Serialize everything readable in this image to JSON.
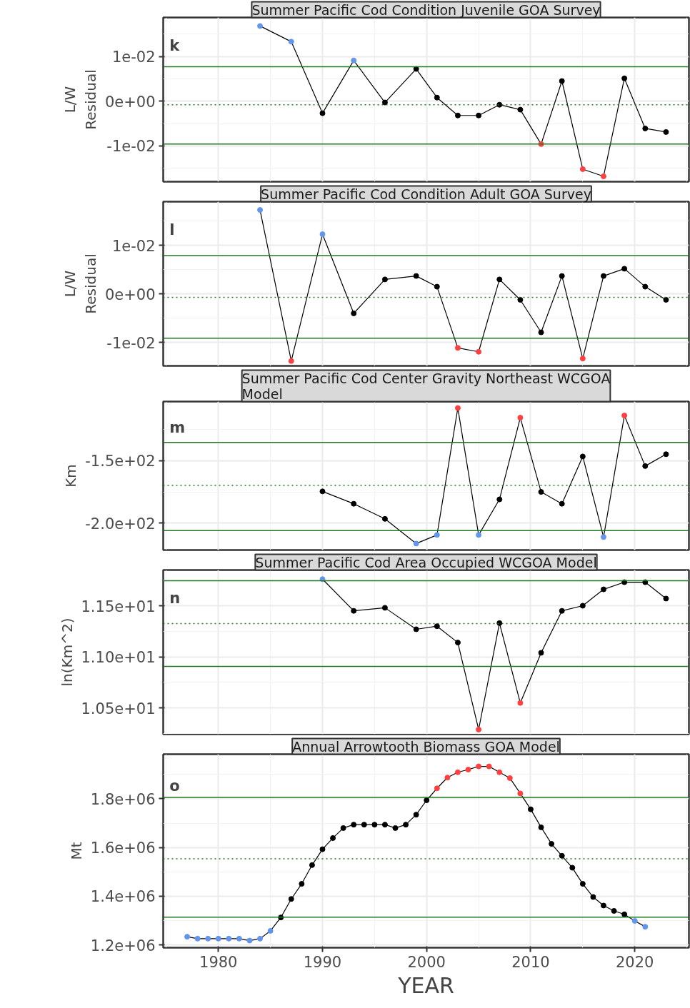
{
  "chart_data": [
    {
      "type": "line",
      "title": "Summer Pacific Cod Condition Juvenile GOA Survey",
      "ylabel": "L/W Residual",
      "annotations": [
        "k"
      ],
      "marker": "circle",
      "grid": true,
      "tick_labels": "y",
      "x": [
        1984,
        1987,
        1990,
        1993,
        1996,
        1999,
        2001,
        2003,
        2005,
        2007,
        2009,
        2011,
        2013,
        2015,
        2017,
        2019,
        2021,
        2023
      ],
      "series": [
        {
          "color": "#000000",
          "colors": [
            "#6495ed",
            "#6495ed",
            "#000000",
            "#6495ed",
            "#000000",
            "#000000",
            "#000000",
            "#000000",
            "#000000",
            "#000000",
            "#000000",
            "#ff4040",
            "#000000",
            "#ff4040",
            "#ff4040",
            "#000000",
            "#000000",
            "#000000"
          ],
          "values": [
            0.0168,
            0.0133,
            -0.0027,
            0.0091,
            -0.0003,
            0.0072,
            0.0008,
            -0.0032,
            -0.0032,
            -0.0008,
            -0.0019,
            -0.0096,
            0.0045,
            -0.0152,
            -0.0168,
            0.0051,
            -0.0061,
            -0.0069
          ]
        }
      ],
      "xlim": [
        1974.7,
        2025.2
      ],
      "xticks": [
        1980,
        1990,
        2000,
        2010,
        2020
      ],
      "ylim": [
        -0.018,
        0.0187
      ],
      "yticks": [
        {
          "value": -0.01,
          "label": "-1e-02"
        },
        {
          "value": 0,
          "label": "0e+00"
        },
        {
          "value": 0.01,
          "label": "1e-02"
        }
      ],
      "ref_lines": [
        {
          "axis": "y",
          "value": 0.0077,
          "color": "#1f7a1f",
          "line_style": "solid"
        },
        {
          "axis": "y",
          "value": -0.0008,
          "color": "#1f7a1f",
          "line_style": "dotted"
        },
        {
          "axis": "y",
          "value": -0.0096,
          "color": "#1f7a1f",
          "line_style": "solid"
        }
      ]
    },
    {
      "type": "line",
      "title": "Summer Pacific Cod Condition Adult GOA Survey",
      "ylabel": "L/W Residual",
      "annotations": [
        "l"
      ],
      "marker": "circle",
      "grid": true,
      "tick_labels": "y",
      "x": [
        1984,
        1987,
        1990,
        1993,
        1996,
        1999,
        2001,
        2003,
        2005,
        2007,
        2009,
        2011,
        2013,
        2015,
        2017,
        2019,
        2021,
        2023
      ],
      "series": [
        {
          "color": "#000000",
          "colors": [
            "#6495ed",
            "#ff4040",
            "#6495ed",
            "#000000",
            "#000000",
            "#000000",
            "#000000",
            "#ff4040",
            "#ff4040",
            "#000000",
            "#000000",
            "#000000",
            "#000000",
            "#ff4040",
            "#000000",
            "#000000",
            "#000000",
            "#000000"
          ],
          "values": [
            0.0173,
            -0.0138,
            0.0123,
            -0.004,
            0.003,
            0.0037,
            0.0015,
            -0.0111,
            -0.0119,
            0.003,
            -0.0012,
            -0.0079,
            0.0037,
            -0.0133,
            0.0037,
            0.0052,
            0.0015,
            -0.0012
          ]
        }
      ],
      "xlim": [
        1974.7,
        2025.2
      ],
      "xticks": [
        1980,
        1990,
        2000,
        2010,
        2020
      ],
      "ylim": [
        -0.0148,
        0.019
      ],
      "yticks": [
        {
          "value": -0.01,
          "label": "-1e-02"
        },
        {
          "value": 0,
          "label": "0e+00"
        },
        {
          "value": 0.01,
          "label": "1e-02"
        }
      ],
      "ref_lines": [
        {
          "axis": "y",
          "value": 0.0079,
          "color": "#1f7a1f",
          "line_style": "solid"
        },
        {
          "axis": "y",
          "value": -0.0007,
          "color": "#1f7a1f",
          "line_style": "dotted"
        },
        {
          "axis": "y",
          "value": -0.0091,
          "color": "#1f7a1f",
          "line_style": "solid"
        }
      ]
    },
    {
      "type": "line",
      "title": "Summer Pacific Cod Center Gravity Northeast WCGOA Model",
      "ylabel": "Km",
      "annotations": [
        "m"
      ],
      "marker": "circle",
      "grid": true,
      "tick_labels": "y",
      "x": [
        1990,
        1993,
        1996,
        1999,
        2001,
        2003,
        2005,
        2007,
        2009,
        2011,
        2013,
        2015,
        2017,
        2019,
        2021,
        2023
      ],
      "series": [
        {
          "color": "#000000",
          "colors": [
            "#000000",
            "#000000",
            "#000000",
            "#6495ed",
            "#6495ed",
            "#ff4040",
            "#6495ed",
            "#000000",
            "#ff4040",
            "#000000",
            "#000000",
            "#000000",
            "#6495ed",
            "#ff4040",
            "#000000",
            "#000000"
          ],
          "values": [
            -174.6,
            -184.5,
            -196.6,
            -216.4,
            -209.5,
            -107.8,
            -209.5,
            -181.0,
            -115.5,
            -175.0,
            -184.5,
            -146.6,
            -211.2,
            -113.8,
            -154.3,
            -144.8
          ]
        }
      ],
      "xlim": [
        1974.7,
        2025.2
      ],
      "xticks": [
        1980,
        1990,
        2000,
        2010,
        2020
      ],
      "ylim": [
        -221.6,
        -102.6
      ],
      "yticks": [
        {
          "value": -200,
          "label": "-2.0e+02"
        },
        {
          "value": -150,
          "label": "-1.5e+02"
        }
      ],
      "ref_lines": [
        {
          "axis": "y",
          "value": -135.3,
          "color": "#1f7a1f",
          "line_style": "solid"
        },
        {
          "axis": "y",
          "value": -169.8,
          "color": "#1f7a1f",
          "line_style": "dotted"
        },
        {
          "axis": "y",
          "value": -206,
          "color": "#1f7a1f",
          "line_style": "solid"
        }
      ]
    },
    {
      "type": "line",
      "title": "Summer Pacific Cod Area Occupied WCGOA Model",
      "ylabel": "ln(Km^2)",
      "annotations": [
        "n"
      ],
      "marker": "circle",
      "grid": true,
      "tick_labels": "y",
      "x": [
        1990,
        1993,
        1996,
        1999,
        2001,
        2003,
        2005,
        2007,
        2009,
        2011,
        2013,
        2015,
        2017,
        2019,
        2021,
        2023
      ],
      "series": [
        {
          "color": "#000000",
          "colors": [
            "#6495ed",
            "#000000",
            "#000000",
            "#000000",
            "#000000",
            "#000000",
            "#ff4040",
            "#000000",
            "#ff4040",
            "#000000",
            "#000000",
            "#000000",
            "#000000",
            "#000000",
            "#000000",
            "#000000"
          ],
          "values": [
            11.76,
            11.45,
            11.48,
            11.27,
            11.3,
            11.14,
            10.29,
            11.33,
            10.55,
            11.04,
            11.45,
            11.5,
            11.66,
            11.73,
            11.73,
            11.57
          ]
        }
      ],
      "xlim": [
        1974.7,
        2025.2
      ],
      "xticks": [
        1980,
        1990,
        2000,
        2010,
        2020
      ],
      "ylim": [
        10.244,
        11.849
      ],
      "yticks": [
        {
          "value": 10.5,
          "label": "1.05e+01"
        },
        {
          "value": 11,
          "label": "1.10e+01"
        },
        {
          "value": 11.5,
          "label": "1.15e+01"
        }
      ],
      "ref_lines": [
        {
          "axis": "y",
          "value": 11.744,
          "color": "#1f7a1f",
          "line_style": "solid"
        },
        {
          "axis": "y",
          "value": 11.326,
          "color": "#1f7a1f",
          "line_style": "dotted"
        },
        {
          "axis": "y",
          "value": 10.907,
          "color": "#1f7a1f",
          "line_style": "solid"
        }
      ]
    },
    {
      "type": "line",
      "title": "Annual Arrowtooth Biomass GOA Model",
      "ylabel": "Mt",
      "xlabel": "YEAR",
      "annotations": [
        "o"
      ],
      "marker": "circle",
      "grid": true,
      "x": [
        1977,
        1978,
        1979,
        1980,
        1981,
        1982,
        1983,
        1984,
        1985,
        1986,
        1987,
        1988,
        1989,
        1990,
        1991,
        1992,
        1993,
        1994,
        1995,
        1996,
        1997,
        1998,
        1999,
        2000,
        2001,
        2002,
        2003,
        2004,
        2005,
        2006,
        2007,
        2008,
        2009,
        2010,
        2011,
        2012,
        2013,
        2014,
        2015,
        2016,
        2017,
        2018,
        2019,
        2020,
        2021
      ],
      "series": [
        {
          "color": "#000000",
          "colors": [
            "#6495ed",
            "#6495ed",
            "#6495ed",
            "#6495ed",
            "#6495ed",
            "#6495ed",
            "#6495ed",
            "#6495ed",
            "#6495ed",
            "#000000",
            "#000000",
            "#000000",
            "#000000",
            "#000000",
            "#000000",
            "#000000",
            "#000000",
            "#000000",
            "#000000",
            "#000000",
            "#000000",
            "#000000",
            "#000000",
            "#000000",
            "#ff4040",
            "#ff4040",
            "#ff4040",
            "#ff4040",
            "#ff4040",
            "#ff4040",
            "#ff4040",
            "#ff4040",
            "#ff4040",
            "#000000",
            "#000000",
            "#000000",
            "#000000",
            "#000000",
            "#000000",
            "#000000",
            "#000000",
            "#000000",
            "#000000",
            "#6495ed",
            "#6495ed"
          ],
          "values": [
            1234000,
            1226000,
            1226000,
            1226000,
            1226000,
            1226000,
            1218000,
            1226000,
            1258000,
            1313000,
            1389000,
            1451000,
            1528000,
            1593000,
            1639000,
            1680000,
            1694000,
            1694000,
            1694000,
            1694000,
            1680000,
            1694000,
            1735000,
            1794000,
            1843000,
            1887000,
            1909000,
            1920000,
            1933000,
            1933000,
            1909000,
            1885000,
            1822000,
            1757000,
            1683000,
            1615000,
            1566000,
            1517000,
            1451000,
            1397000,
            1362000,
            1340000,
            1326000,
            1299000,
            1275000
          ]
        }
      ],
      "xlim": [
        1974.7,
        2025.2
      ],
      "xticks": [
        1980,
        1990,
        2000,
        2010,
        2020
      ],
      "ylim": [
        1189000,
        1983000
      ],
      "yticks": [
        {
          "value": 1200000,
          "label": "1.2e+06"
        },
        {
          "value": 1400000,
          "label": "1.4e+06"
        },
        {
          "value": 1600000,
          "label": "1.6e+06"
        },
        {
          "value": 1800000,
          "label": "1.8e+06"
        }
      ],
      "ref_lines": [
        {
          "axis": "y",
          "value": 1806000,
          "color": "#1f7a1f",
          "line_style": "solid"
        },
        {
          "axis": "y",
          "value": 1554000,
          "color": "#1f7a1f",
          "line_style": "dotted"
        },
        {
          "axis": "y",
          "value": 1314000,
          "color": "#1f7a1f",
          "line_style": "solid"
        }
      ]
    }
  ]
}
